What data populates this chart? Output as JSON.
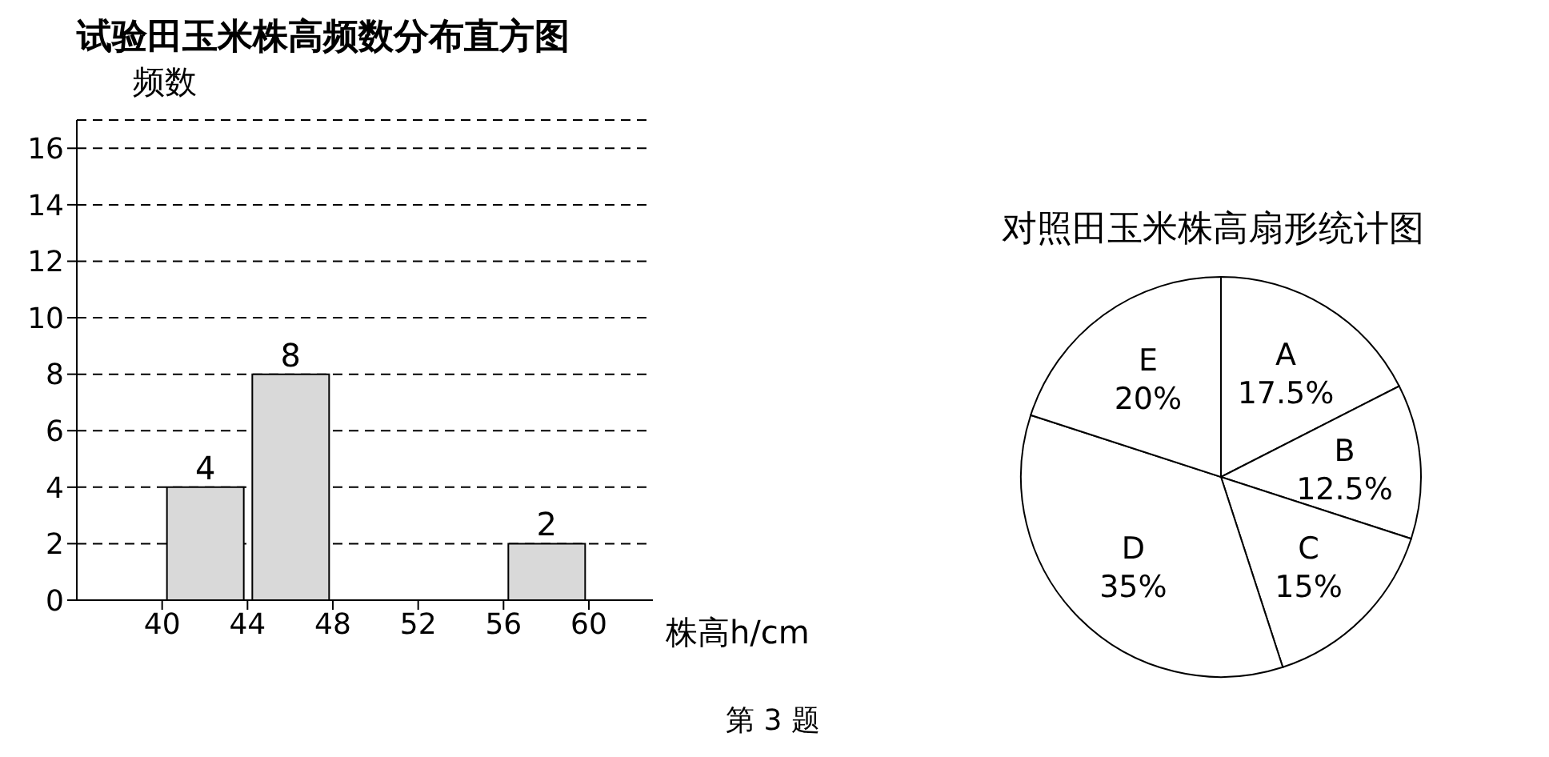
{
  "chart_data": [
    {
      "type": "histogram",
      "title": "试验田玉米株高频数分布直方图",
      "ylabel": "频数",
      "xlabel": "株高h/cm",
      "bins": [
        40,
        44,
        48,
        52,
        56,
        60
      ],
      "values": [
        4,
        8,
        null,
        null,
        2
      ],
      "color": "#d9d9d9",
      "xlim": [
        36,
        63
      ],
      "xticks": [
        40,
        44,
        48,
        52,
        56,
        60
      ],
      "ylim": [
        0,
        17
      ],
      "yticks": [
        0,
        2,
        4,
        6,
        8,
        10,
        12,
        14,
        16
      ],
      "grid": "y",
      "data_labels": true,
      "annotations": [
        "第 3 题"
      ]
    },
    {
      "type": "pie",
      "title": "对照田玉米株高扇形统计图",
      "categories": [
        "A",
        "B",
        "C",
        "D",
        "E"
      ],
      "values": [
        17.5,
        12.5,
        15,
        35,
        20
      ],
      "value_labels": [
        "17.5%",
        "12.5%",
        "15%",
        "35%",
        "20%"
      ],
      "colors": [
        "#ffffff",
        "#ffffff",
        "#ffffff",
        "#ffffff",
        "#ffffff"
      ]
    }
  ]
}
